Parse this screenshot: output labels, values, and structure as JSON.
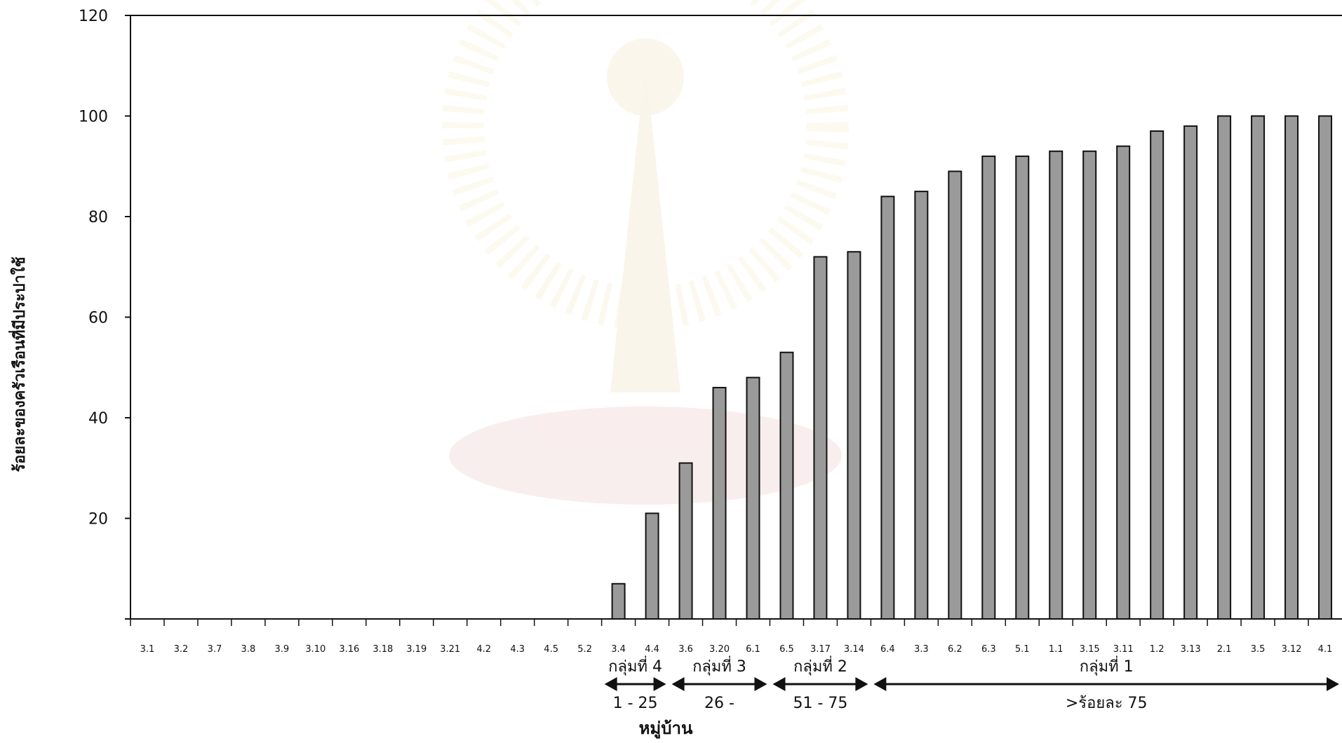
{
  "chart_data": {
    "type": "bar",
    "ylabel": "ร้อยละของครัวเรือนที่มีประปาใช้",
    "xlabel": "หมู่บ้าน",
    "ylim": [
      0,
      120
    ],
    "yticks": [
      "",
      "20",
      "40",
      "60",
      "80",
      "100",
      "120"
    ],
    "grid": false,
    "categories": [
      "3.1",
      "3.2",
      "3.7",
      "3.8",
      "3.9",
      "3.10",
      "3.16",
      "3.18",
      "3.19",
      "3.21",
      "4.2",
      "4.3",
      "4.5",
      "5.2",
      "3.4",
      "4.4",
      "3.6",
      "3.20",
      "6.1",
      "6.5",
      "3.17",
      "3.14",
      "6.4",
      "3.3",
      "6.2",
      "6.3",
      "5.1",
      "1.1",
      "3.15",
      "3.11",
      "1.2",
      "3.13",
      "2.1",
      "3.5",
      "3.12",
      "4.1"
    ],
    "values": [
      0,
      0,
      0,
      0,
      0,
      0,
      0,
      0,
      0,
      0,
      0,
      0,
      0,
      0,
      7,
      21,
      31,
      46,
      48,
      53,
      72,
      73,
      84,
      85,
      89,
      92,
      92,
      93,
      93,
      94,
      97,
      98,
      100,
      100,
      100,
      100
    ],
    "bar_color": "#9a9a9a",
    "groups": [
      {
        "label": "กลุ่มที่ 4",
        "range": "1 - 25",
        "from": 14,
        "to": 15
      },
      {
        "label": "กลุ่มที่ 3",
        "range": "26 -",
        "from": 16,
        "to": 18
      },
      {
        "label": "กลุ่มที่ 2",
        "range": "51 - 75",
        "from": 19,
        "to": 21
      },
      {
        "label": "กลุ่มที่ 1",
        "range": ">ร้อยละ  75",
        "from": 22,
        "to": 35
      }
    ]
  }
}
